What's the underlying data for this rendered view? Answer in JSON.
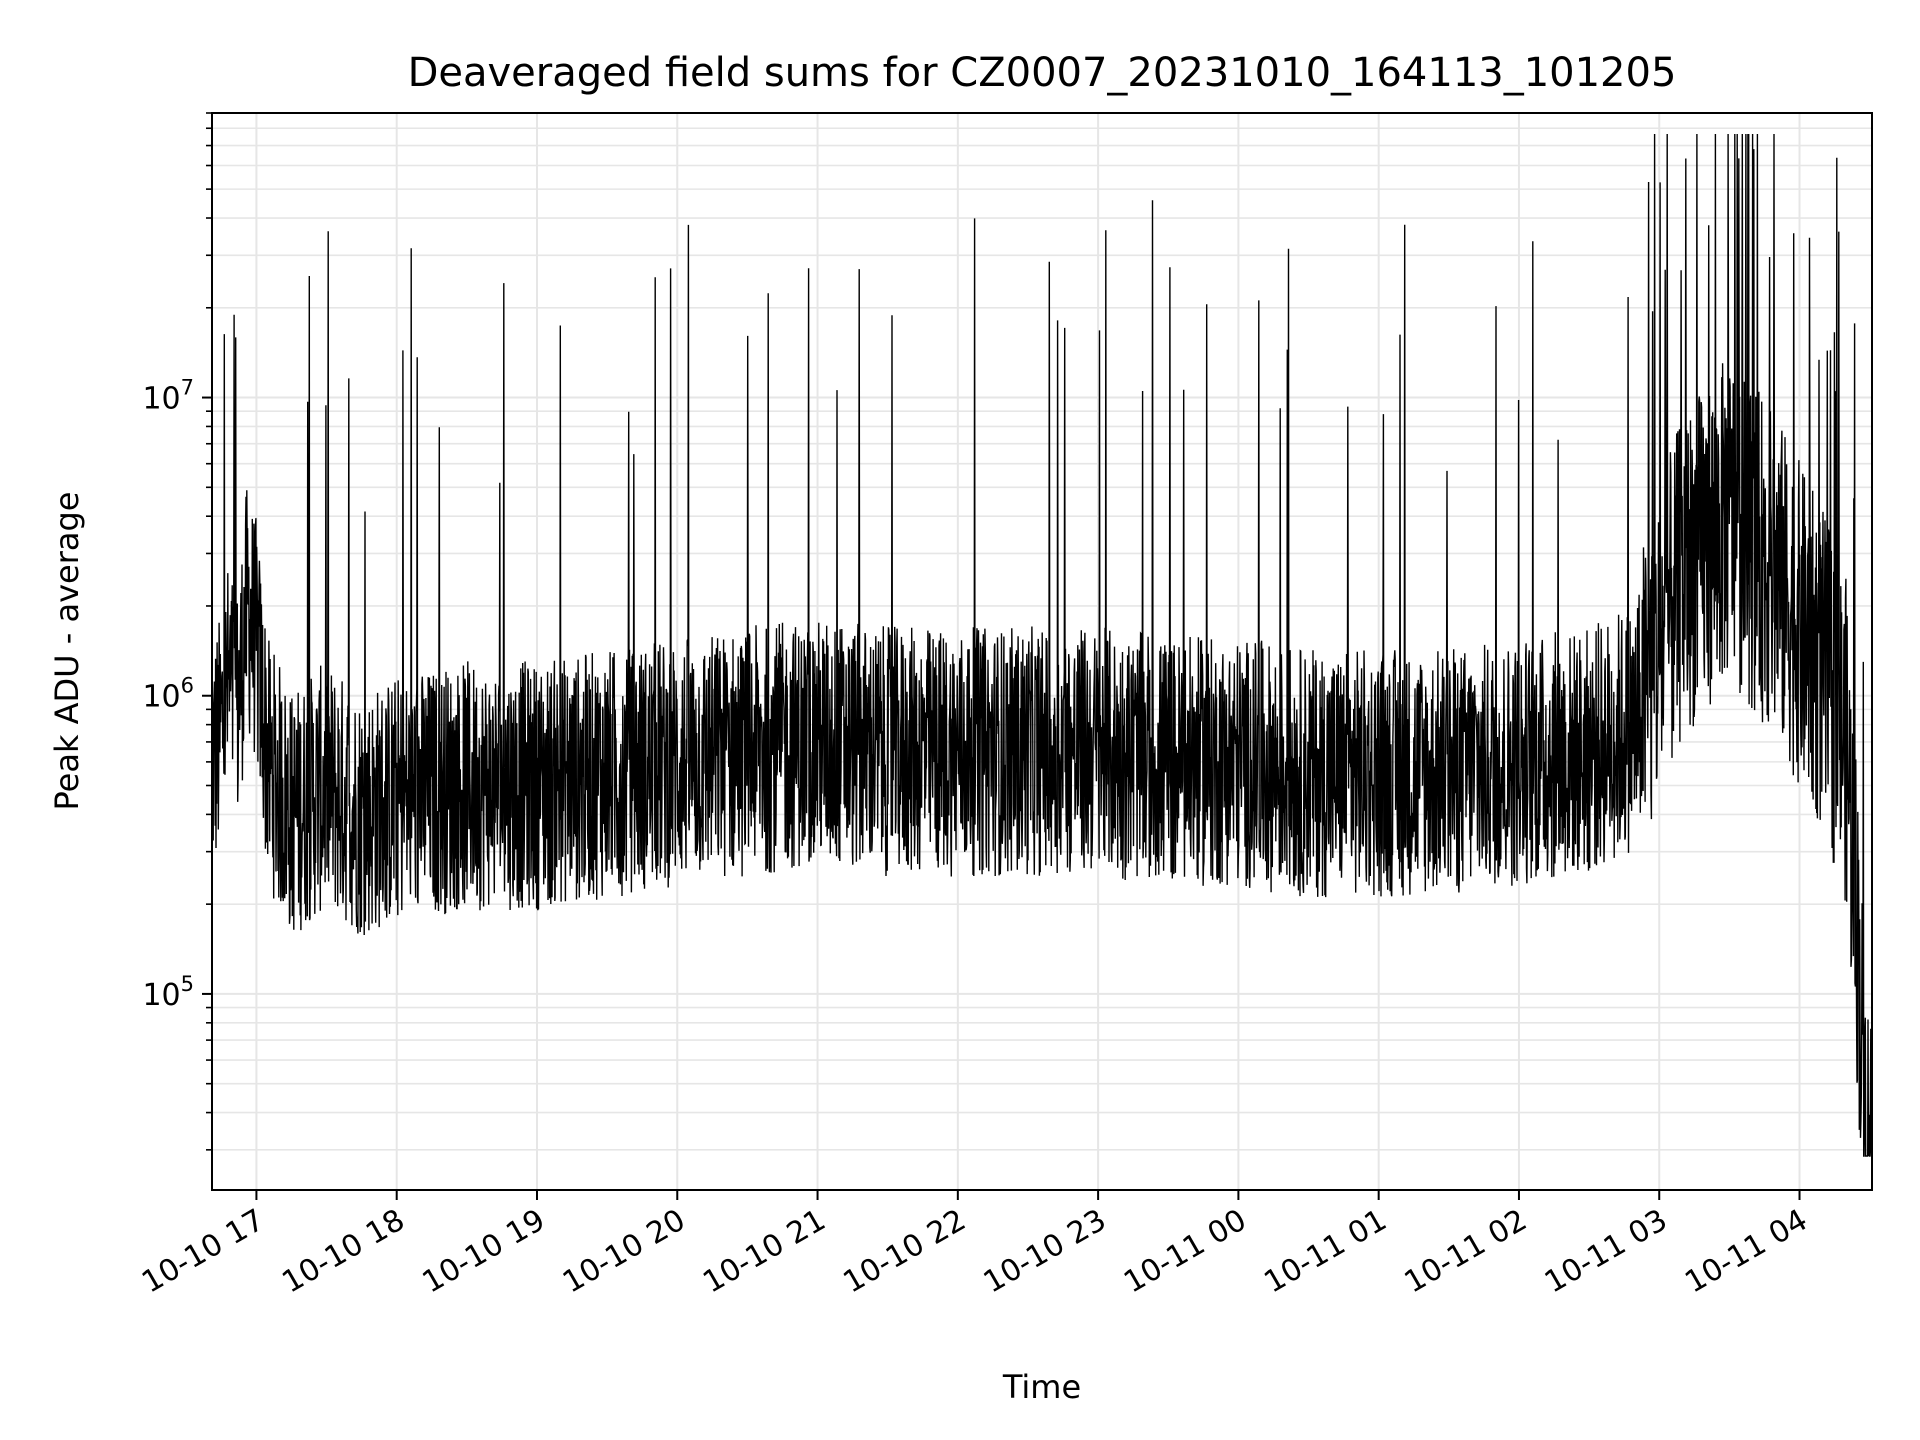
{
  "chart_data": {
    "type": "line",
    "title": "Deaveraged field sums for CZ0007_20231010_164113_101205",
    "xlabel": "Time",
    "ylabel": "Peak ADU - average",
    "yscale": "log",
    "ylim": [
      22000,
      90000000
    ],
    "xlim": [
      "2023-10-10 16:41",
      "2023-10-11 04:31"
    ],
    "grid": true,
    "legend": "none",
    "line_color": "#000000",
    "grid_color": "#e6e6e6",
    "x_ticks": [
      {
        "time": "2023-10-10 17:00",
        "label": "10-10 17"
      },
      {
        "time": "2023-10-10 18:00",
        "label": "10-10 18"
      },
      {
        "time": "2023-10-10 19:00",
        "label": "10-10 19"
      },
      {
        "time": "2023-10-10 20:00",
        "label": "10-10 20"
      },
      {
        "time": "2023-10-10 21:00",
        "label": "10-10 21"
      },
      {
        "time": "2023-10-10 22:00",
        "label": "10-10 22"
      },
      {
        "time": "2023-10-10 23:00",
        "label": "10-10 23"
      },
      {
        "time": "2023-10-11 00:00",
        "label": "10-11 00"
      },
      {
        "time": "2023-10-11 01:00",
        "label": "10-11 01"
      },
      {
        "time": "2023-10-11 02:00",
        "label": "10-11 02"
      },
      {
        "time": "2023-10-11 03:00",
        "label": "10-11 03"
      },
      {
        "time": "2023-10-11 04:00",
        "label": "10-11 04"
      }
    ],
    "y_ticks": [
      {
        "value": 100000,
        "base": "10",
        "exp": "5"
      },
      {
        "value": 1000000,
        "base": "10",
        "exp": "6"
      },
      {
        "value": 10000000,
        "base": "10",
        "exp": "7"
      }
    ],
    "series": [
      {
        "values": [
          {
            "time": "2023-10-10 16:41",
            "y": 600000
          },
          {
            "time": "2023-10-10 16:44",
            "y": 700000
          },
          {
            "time": "2023-10-10 16:48",
            "y": 1100000
          },
          {
            "time": "2023-10-10 16:52",
            "y": 900000
          },
          {
            "time": "2023-10-10 16:56",
            "y": 2000000
          },
          {
            "time": "2023-10-10 17:00",
            "y": 1500000
          },
          {
            "time": "2023-10-10 17:05",
            "y": 600000
          },
          {
            "time": "2023-10-10 17:15",
            "y": 400000
          },
          {
            "time": "2023-10-10 17:30",
            "y": 500000
          },
          {
            "time": "2023-10-10 17:45",
            "y": 400000
          },
          {
            "time": "2023-10-10 18:00",
            "y": 450000
          },
          {
            "time": "2023-10-10 18:30",
            "y": 500000
          },
          {
            "time": "2023-10-10 19:00",
            "y": 500000
          },
          {
            "time": "2023-10-10 19:30",
            "y": 550000
          },
          {
            "time": "2023-10-10 20:00",
            "y": 600000
          },
          {
            "time": "2023-10-10 20:30",
            "y": 650000
          },
          {
            "time": "2023-10-10 21:00",
            "y": 700000
          },
          {
            "time": "2023-10-10 21:30",
            "y": 650000
          },
          {
            "time": "2023-10-10 22:00",
            "y": 650000
          },
          {
            "time": "2023-10-10 22:30",
            "y": 650000
          },
          {
            "time": "2023-10-10 23:00",
            "y": 650000
          },
          {
            "time": "2023-10-10 23:30",
            "y": 600000
          },
          {
            "time": "2023-10-11 00:00",
            "y": 600000
          },
          {
            "time": "2023-10-11 00:30",
            "y": 550000
          },
          {
            "time": "2023-10-11 01:00",
            "y": 550000
          },
          {
            "time": "2023-10-11 01:30",
            "y": 550000
          },
          {
            "time": "2023-10-11 02:00",
            "y": 600000
          },
          {
            "time": "2023-10-11 02:30",
            "y": 650000
          },
          {
            "time": "2023-10-11 02:50",
            "y": 800000
          },
          {
            "time": "2023-10-11 03:10",
            "y": 2500000
          },
          {
            "time": "2023-10-11 03:30",
            "y": 4000000
          },
          {
            "time": "2023-10-11 03:50",
            "y": 2500000
          },
          {
            "time": "2023-10-11 04:10",
            "y": 1200000
          },
          {
            "time": "2023-10-11 04:20",
            "y": 700000
          },
          {
            "time": "2023-10-11 04:25",
            "y": 150000
          },
          {
            "time": "2023-10-11 04:28",
            "y": 40000
          },
          {
            "time": "2023-10-11 04:31",
            "y": 35000
          }
        ]
      }
    ]
  }
}
